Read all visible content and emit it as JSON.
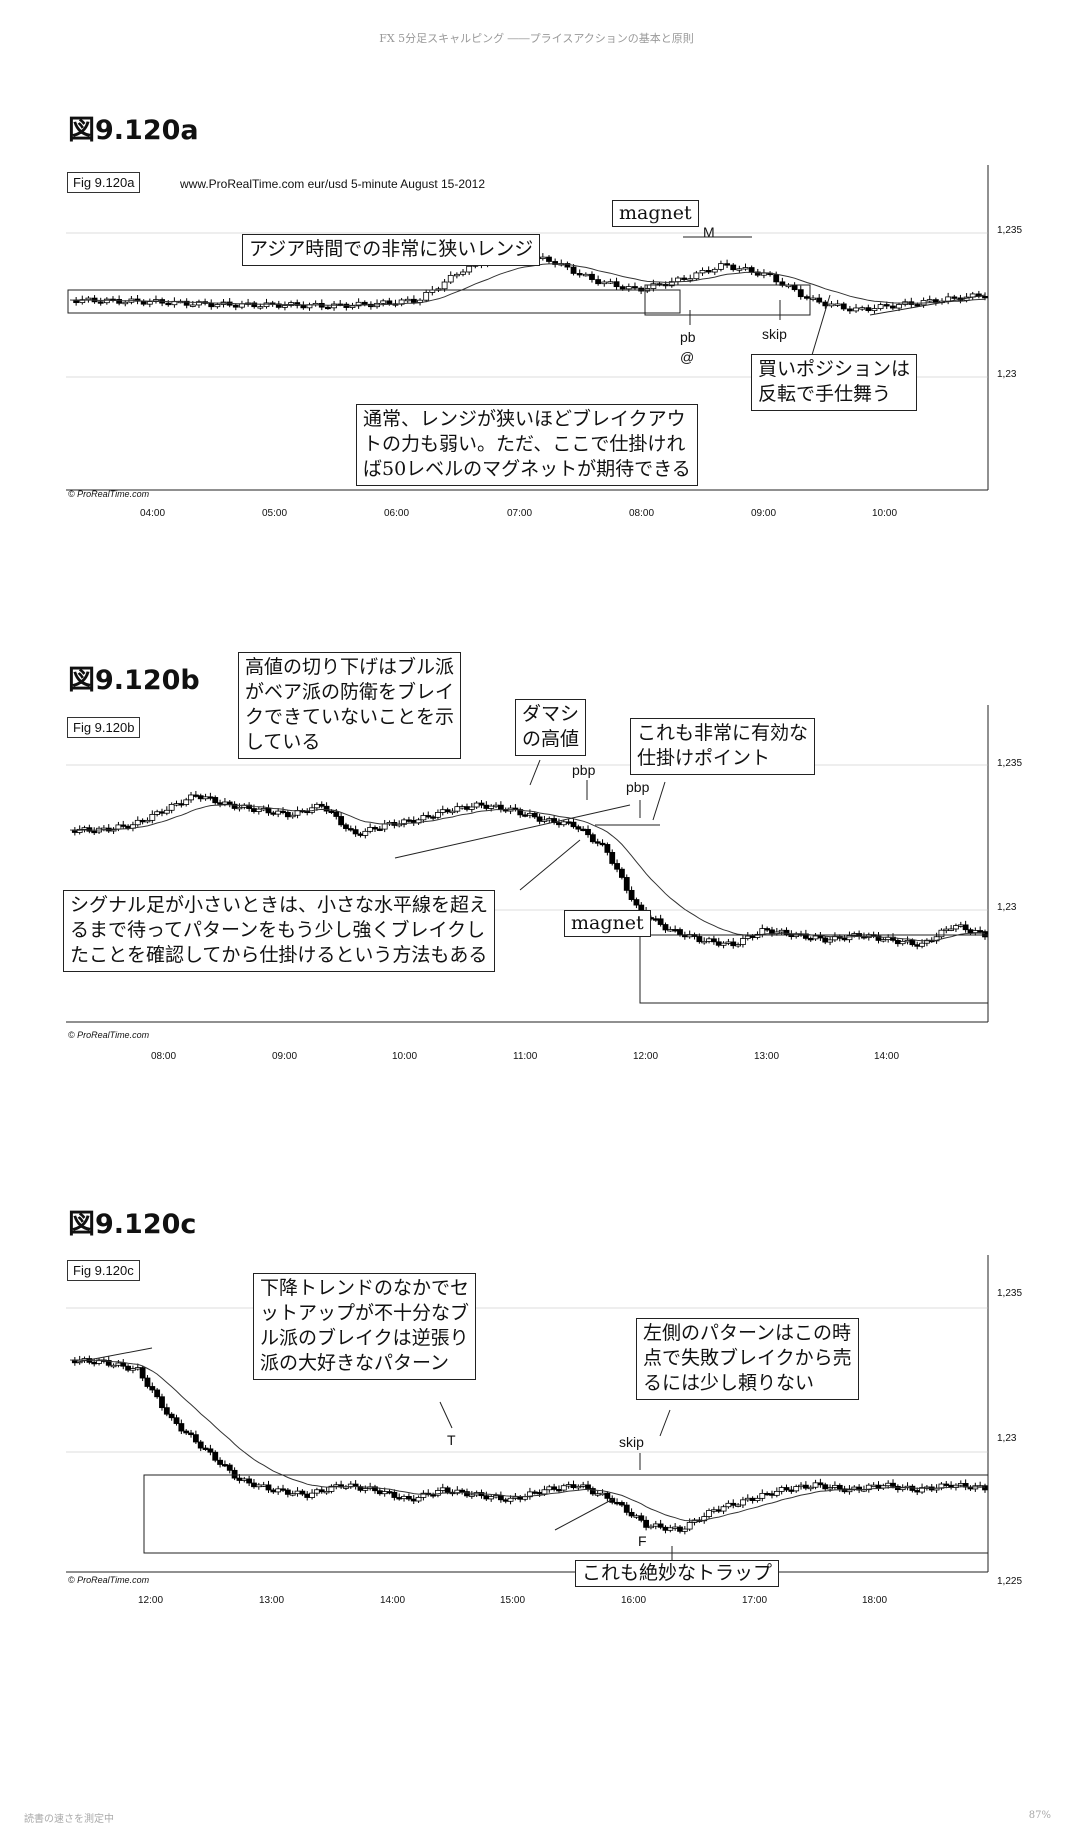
{
  "header": "FX 5分足スキャルピング ――プライスアクションの基本と原則",
  "footer_left": "読書の速さを測定中",
  "footer_right": "87%",
  "figures": [
    {
      "title": "図9.120a",
      "tag": "Fig 9.120a",
      "meta": "www.ProRealTime.com     eur/usd  5-minute  August 15-2012",
      "copyright": "© ProRealTime.com",
      "y_ticks": [
        "1,235",
        "1,23"
      ],
      "x_ticks": [
        "04:00",
        "05:00",
        "06:00",
        "07:00",
        "08:00",
        "09:00",
        "10:00"
      ],
      "annotations": [
        "アジア時間での非常に狭いレンジ",
        "通常、レンジが狭いほどブレイクアウ\nトの力も弱い。ただ、ここで仕掛けれ\nば50レベルのマグネットが期待できる",
        "買いポジションは\n反転で手仕舞う"
      ],
      "labels": {
        "magnet": "magnet",
        "M": "M",
        "pb": "pb",
        "at": "@",
        "skip": "skip"
      }
    },
    {
      "title": "図9.120b",
      "tag": "Fig 9.120b",
      "copyright": "© ProRealTime.com",
      "y_ticks": [
        "1,235",
        "1,23"
      ],
      "x_ticks": [
        "08:00",
        "09:00",
        "10:00",
        "11:00",
        "12:00",
        "13:00",
        "14:00"
      ],
      "annotations": [
        "高値の切り下げはブル派\nがベア派の防衛をブレイ\nクできていないことを示\nしている",
        "ダマシ\nの高値",
        "これも非常に有効な\n仕掛けポイント",
        "シグナル足が小さいときは、小さな水平線を超え\nるまで待ってパターンをもう少し強くブレイクし\nたことを確認してから仕掛けるという方法もある"
      ],
      "labels": {
        "pbp1": "pbp",
        "pbp2": "pbp",
        "magnet": "magnet"
      }
    },
    {
      "title": "図9.120c",
      "tag": "Fig 9.120c",
      "copyright": "© ProRealTime.com",
      "y_ticks": [
        "1,235",
        "1,23",
        "1,225"
      ],
      "x_ticks": [
        "12:00",
        "13:00",
        "14:00",
        "15:00",
        "16:00",
        "17:00",
        "18:00"
      ],
      "annotations": [
        "下降トレンドのなかでセ\nットアップが不十分なブ\nル派のブレイクは逆張り\n派の大好きなパターン",
        "左側のパターンはこの時\n点で失敗ブレイクから売\nるには少し頼りない",
        "これも絶妙なトラップ"
      ],
      "labels": {
        "T": "T",
        "skip": "skip",
        "F": "F"
      }
    }
  ]
}
